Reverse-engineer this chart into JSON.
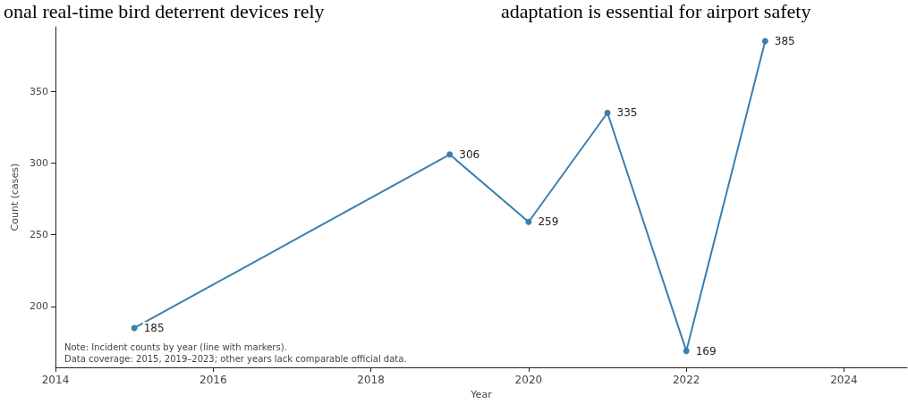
{
  "chart_data": {
    "type": "line",
    "annotations": [
      "onal real-time bird deterrent devices rely",
      "adaptation is essential for airport safety",
      "Note: Incident counts by year (line with markers).",
      "Data coverage: 2015, 2019–2023; other years lack comparable official data."
    ],
    "xlabel": "Year",
    "ylabel": "Count (cases)",
    "x": [
      2015,
      2019,
      2020,
      2021,
      2022,
      2023
    ],
    "series": [
      {
        "color": "#3a7fb0",
        "values": [
          185,
          306,
          259,
          335,
          169,
          385
        ]
      }
    ],
    "data_labels": true,
    "marker": "circle",
    "line_style": "solid",
    "grid": false,
    "xlim": [
      2014,
      2024.8
    ],
    "xticks": [
      2014,
      2016,
      2018,
      2020,
      2022,
      2024
    ],
    "ylim": [
      157.5,
      395
    ],
    "yticks": [
      200,
      250,
      300,
      350
    ]
  }
}
